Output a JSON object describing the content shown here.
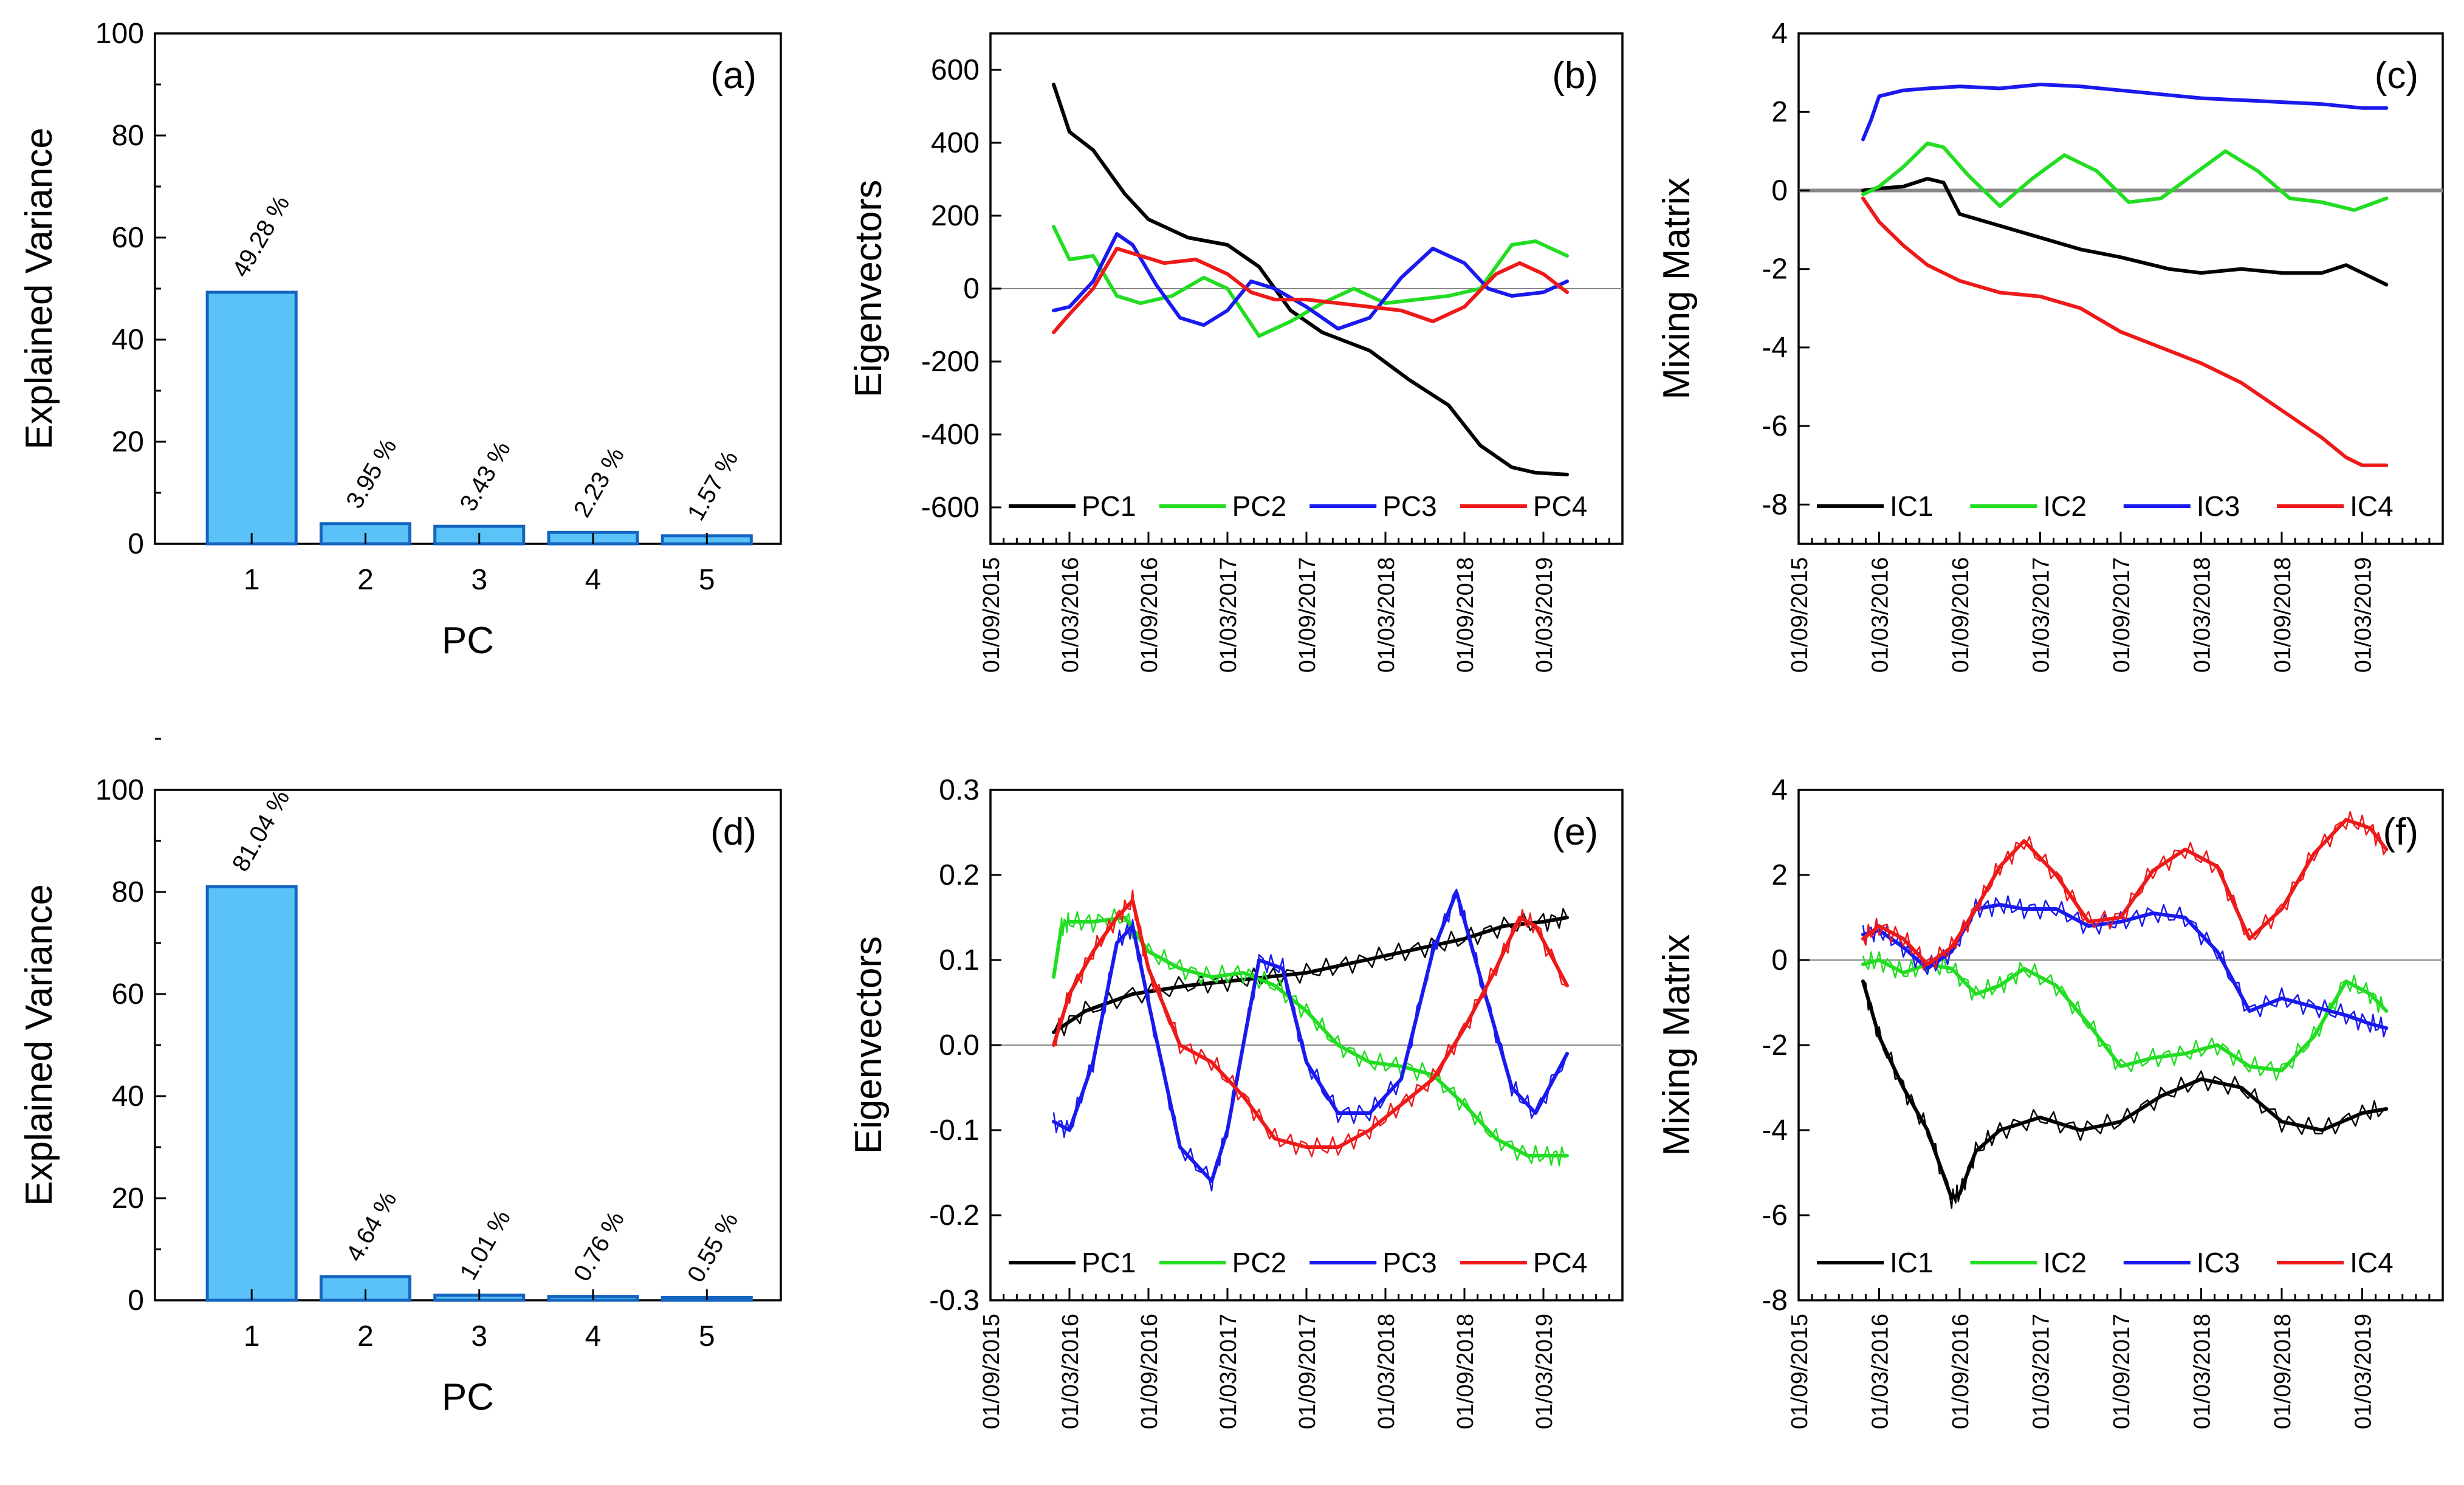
{
  "colors": {
    "bar_fill": "#5bc2f7",
    "bar_edge": "#1565c0",
    "PC1": "#000000",
    "PC2": "#22dd22",
    "PC3": "#1a1aee",
    "PC4": "#ee1a1a",
    "zero": "#888888"
  },
  "date_ticks": [
    "01/09/2015",
    "01/03/2016",
    "01/09/2016",
    "01/03/2017",
    "01/09/2017",
    "01/03/2018",
    "01/09/2018",
    "01/03/2019"
  ],
  "chart_data": [
    {
      "id": "a",
      "panel_label": "(a)",
      "type": "bar",
      "xlabel": "PC",
      "ylabel": "Explained Variance",
      "categories": [
        "1",
        "2",
        "3",
        "4",
        "5"
      ],
      "values": [
        49.28,
        3.95,
        3.43,
        2.23,
        1.57
      ],
      "data_labels": [
        "49.28 %",
        "3.95 %",
        "3.43 %",
        "2.23 %",
        "1.57 %"
      ],
      "ylim": [
        0,
        100
      ],
      "yticks": [
        "0",
        "20",
        "40",
        "60",
        "80",
        "100"
      ]
    },
    {
      "id": "b",
      "panel_label": "(b)",
      "type": "line",
      "ylabel": "Eigenvectors",
      "xlim": [
        0,
        8
      ],
      "ylim": [
        -700,
        700
      ],
      "yticks": [
        "-600",
        "-400",
        "-200",
        "0",
        "200",
        "400",
        "600"
      ],
      "ytick_values": [
        -600,
        -400,
        -200,
        0,
        200,
        400,
        600
      ],
      "legend": [
        "PC1",
        "PC2",
        "PC3",
        "PC4"
      ],
      "series": [
        {
          "name": "PC1",
          "x": [
            0.8,
            1.0,
            1.3,
            1.7,
            2.0,
            2.5,
            3.0,
            3.4,
            3.8,
            4.2,
            4.8,
            5.3,
            5.8,
            6.2,
            6.6,
            6.9,
            7.3
          ],
          "y": [
            560,
            430,
            380,
            260,
            190,
            140,
            120,
            60,
            -60,
            -120,
            -170,
            -250,
            -320,
            -430,
            -490,
            -505,
            -510
          ]
        },
        {
          "name": "PC2",
          "x": [
            0.8,
            1.0,
            1.3,
            1.6,
            1.9,
            2.3,
            2.7,
            3.0,
            3.4,
            3.8,
            4.2,
            4.6,
            5.0,
            5.4,
            5.8,
            6.2,
            6.6,
            6.9,
            7.3
          ],
          "y": [
            170,
            80,
            90,
            -20,
            -40,
            -20,
            30,
            0,
            -130,
            -90,
            -40,
            0,
            -40,
            -30,
            -20,
            0,
            120,
            130,
            90
          ]
        },
        {
          "name": "PC3",
          "x": [
            0.8,
            1.0,
            1.3,
            1.6,
            1.8,
            2.1,
            2.4,
            2.7,
            3.0,
            3.3,
            3.6,
            4.0,
            4.4,
            4.8,
            5.2,
            5.6,
            6.0,
            6.3,
            6.6,
            7.0,
            7.3
          ],
          "y": [
            -60,
            -50,
            20,
            150,
            120,
            10,
            -80,
            -100,
            -60,
            20,
            0,
            -50,
            -110,
            -80,
            30,
            110,
            70,
            0,
            -20,
            -10,
            20
          ]
        },
        {
          "name": "PC4",
          "x": [
            0.8,
            1.0,
            1.3,
            1.6,
            1.9,
            2.2,
            2.6,
            3.0,
            3.3,
            3.6,
            4.0,
            4.4,
            4.8,
            5.2,
            5.6,
            6.0,
            6.4,
            6.7,
            7.0,
            7.3
          ],
          "y": [
            -120,
            -70,
            0,
            110,
            90,
            70,
            80,
            40,
            -10,
            -30,
            -30,
            -40,
            -50,
            -60,
            -90,
            -50,
            40,
            70,
            40,
            -10
          ]
        }
      ]
    },
    {
      "id": "c",
      "panel_label": "(c)",
      "type": "line",
      "ylabel": "Mixing Matrix",
      "xlim": [
        0,
        8
      ],
      "ylim": [
        -9,
        4
      ],
      "yticks": [
        "-8",
        "-6",
        "-4",
        "-2",
        "0",
        "2",
        "4"
      ],
      "ytick_values": [
        -8,
        -6,
        -4,
        -2,
        0,
        2,
        4
      ],
      "legend": [
        "IC1",
        "IC2",
        "IC3",
        "IC4"
      ],
      "series": [
        {
          "name": "IC1",
          "x": [
            0.8,
            1.0,
            1.3,
            1.6,
            1.8,
            2.0,
            2.5,
            3.0,
            3.5,
            4.0,
            4.6,
            5.0,
            5.5,
            6.0,
            6.5,
            6.8,
            7.1,
            7.3
          ],
          "y": [
            0.0,
            0.05,
            0.1,
            0.3,
            0.2,
            -0.6,
            -0.9,
            -1.2,
            -1.5,
            -1.7,
            -2.0,
            -2.1,
            -2.0,
            -2.1,
            -2.1,
            -1.9,
            -2.2,
            -2.4
          ]
        },
        {
          "name": "IC2",
          "x": [
            0.8,
            1.0,
            1.3,
            1.6,
            1.8,
            2.1,
            2.5,
            2.9,
            3.3,
            3.7,
            4.1,
            4.5,
            4.9,
            5.3,
            5.7,
            6.1,
            6.5,
            6.9,
            7.3
          ],
          "y": [
            -0.1,
            0.1,
            0.6,
            1.2,
            1.1,
            0.4,
            -0.4,
            0.3,
            0.9,
            0.5,
            -0.3,
            -0.2,
            0.4,
            1.0,
            0.5,
            -0.2,
            -0.3,
            -0.5,
            -0.2
          ]
        },
        {
          "name": "IC3",
          "x": [
            0.8,
            0.9,
            1.0,
            1.3,
            1.6,
            2.0,
            2.5,
            3.0,
            3.5,
            4.0,
            4.5,
            5.0,
            5.5,
            6.0,
            6.5,
            7.0,
            7.3
          ],
          "y": [
            1.3,
            1.8,
            2.4,
            2.55,
            2.6,
            2.65,
            2.6,
            2.7,
            2.65,
            2.55,
            2.45,
            2.35,
            2.3,
            2.25,
            2.2,
            2.1,
            2.1
          ]
        },
        {
          "name": "IC4",
          "x": [
            0.8,
            1.0,
            1.3,
            1.6,
            2.0,
            2.5,
            3.0,
            3.5,
            4.0,
            4.5,
            5.0,
            5.5,
            6.0,
            6.5,
            6.8,
            7.0,
            7.3
          ],
          "y": [
            -0.2,
            -0.8,
            -1.4,
            -1.9,
            -2.3,
            -2.6,
            -2.7,
            -3.0,
            -3.6,
            -4.0,
            -4.4,
            -4.9,
            -5.6,
            -6.3,
            -6.8,
            -7.0,
            -7.0
          ]
        }
      ]
    },
    {
      "id": "d",
      "panel_label": "(d)",
      "type": "bar",
      "xlabel": "PC",
      "ylabel": "Explained Variance",
      "categories": [
        "1",
        "2",
        "3",
        "4",
        "5"
      ],
      "values": [
        81.04,
        4.64,
        1.01,
        0.76,
        0.55
      ],
      "data_labels": [
        "81.04 %",
        "4.64 %",
        "1.01 %",
        "0.76 %",
        "0.55 %"
      ],
      "ylim": [
        0,
        100
      ],
      "yticks": [
        "0",
        "20",
        "40",
        "60",
        "80",
        "100"
      ]
    },
    {
      "id": "e",
      "panel_label": "(e)",
      "type": "line",
      "ylabel": "Eigenvectors",
      "xlim": [
        0,
        8
      ],
      "ylim": [
        -0.3,
        0.3
      ],
      "yticks": [
        "-0.3",
        "-0.2",
        "-0.1",
        "0.0",
        "0.1",
        "0.2",
        "0.3"
      ],
      "ytick_values": [
        -0.3,
        -0.2,
        -0.1,
        0,
        0.1,
        0.2,
        0.3
      ],
      "legend": [
        "PC1",
        "PC2",
        "PC3",
        "PC4"
      ],
      "series": [
        {
          "name": "PC1",
          "x": [
            0.8,
            1.2,
            1.8,
            2.5,
            3.0,
            3.5,
            4.0,
            4.5,
            5.0,
            5.5,
            6.0,
            6.5,
            7.0,
            7.3
          ],
          "y": [
            0.015,
            0.04,
            0.06,
            0.07,
            0.075,
            0.08,
            0.085,
            0.095,
            0.105,
            0.115,
            0.125,
            0.14,
            0.145,
            0.15
          ]
        },
        {
          "name": "PC2",
          "x": [
            0.8,
            0.9,
            1.0,
            1.3,
            1.7,
            2.0,
            2.4,
            2.8,
            3.2,
            3.6,
            4.0,
            4.4,
            4.8,
            5.2,
            5.6,
            6.0,
            6.4,
            6.8,
            7.1,
            7.3
          ],
          "y": [
            0.08,
            0.14,
            0.145,
            0.145,
            0.15,
            0.11,
            0.09,
            0.08,
            0.085,
            0.07,
            0.04,
            0.0,
            -0.02,
            -0.025,
            -0.035,
            -0.07,
            -0.11,
            -0.13,
            -0.13,
            -0.13
          ]
        },
        {
          "name": "PC3",
          "x": [
            0.8,
            1.0,
            1.3,
            1.6,
            1.8,
            2.0,
            2.4,
            2.8,
            3.0,
            3.4,
            3.7,
            4.0,
            4.4,
            4.8,
            5.2,
            5.6,
            5.9,
            6.2,
            6.6,
            6.9,
            7.3
          ],
          "y": [
            -0.09,
            -0.1,
            -0.02,
            0.12,
            0.14,
            0.05,
            -0.12,
            -0.16,
            -0.1,
            0.1,
            0.09,
            -0.02,
            -0.08,
            -0.08,
            -0.04,
            0.11,
            0.18,
            0.08,
            -0.05,
            -0.08,
            -0.01
          ]
        },
        {
          "name": "PC4",
          "x": [
            0.8,
            1.0,
            1.3,
            1.6,
            1.8,
            2.0,
            2.4,
            2.8,
            3.2,
            3.6,
            4.0,
            4.4,
            4.8,
            5.2,
            5.6,
            6.0,
            6.4,
            6.7,
            6.9,
            7.3
          ],
          "y": [
            0.0,
            0.06,
            0.11,
            0.15,
            0.17,
            0.09,
            0.0,
            -0.02,
            -0.06,
            -0.11,
            -0.12,
            -0.12,
            -0.1,
            -0.07,
            -0.04,
            0.02,
            0.09,
            0.15,
            0.14,
            0.07
          ]
        }
      ]
    },
    {
      "id": "f",
      "panel_label": "(f)",
      "type": "line",
      "ylabel": "Mixing Matrix",
      "xlim": [
        0,
        8
      ],
      "ylim": [
        -8,
        4
      ],
      "yticks": [
        "-8",
        "-6",
        "-4",
        "-2",
        "0",
        "2",
        "4"
      ],
      "ytick_values": [
        -8,
        -6,
        -4,
        -2,
        0,
        2,
        4
      ],
      "legend": [
        "IC1",
        "IC2",
        "IC3",
        "IC4"
      ],
      "series": [
        {
          "name": "IC1",
          "x": [
            0.8,
            1.0,
            1.3,
            1.6,
            1.9,
            2.0,
            2.2,
            2.5,
            3.0,
            3.5,
            4.0,
            4.5,
            5.0,
            5.5,
            6.0,
            6.5,
            7.0,
            7.3
          ],
          "y": [
            -0.5,
            -1.8,
            -3.0,
            -4.0,
            -5.6,
            -5.5,
            -4.5,
            -4.0,
            -3.7,
            -4.0,
            -3.8,
            -3.2,
            -2.8,
            -3.0,
            -3.8,
            -4.0,
            -3.6,
            -3.5
          ]
        },
        {
          "name": "IC2",
          "x": [
            0.8,
            1.0,
            1.3,
            1.6,
            1.9,
            2.2,
            2.5,
            2.8,
            3.2,
            3.6,
            4.0,
            4.4,
            4.8,
            5.2,
            5.6,
            6.0,
            6.4,
            6.8,
            7.1,
            7.3
          ],
          "y": [
            -0.1,
            0.0,
            -0.3,
            -0.1,
            -0.2,
            -0.8,
            -0.6,
            -0.2,
            -0.6,
            -1.5,
            -2.5,
            -2.3,
            -2.2,
            -2.0,
            -2.5,
            -2.6,
            -1.8,
            -0.5,
            -0.8,
            -1.2
          ]
        },
        {
          "name": "IC3",
          "x": [
            0.8,
            1.0,
            1.3,
            1.6,
            1.9,
            2.2,
            2.5,
            2.8,
            3.2,
            3.6,
            4.0,
            4.4,
            4.8,
            5.2,
            5.6,
            6.0,
            6.4,
            6.8,
            7.1,
            7.3
          ],
          "y": [
            0.6,
            0.7,
            0.3,
            -0.2,
            0.2,
            1.2,
            1.3,
            1.2,
            1.2,
            0.8,
            0.9,
            1.1,
            1.0,
            0.2,
            -1.2,
            -0.9,
            -1.1,
            -1.3,
            -1.5,
            -1.6
          ]
        },
        {
          "name": "IC4",
          "x": [
            0.8,
            1.0,
            1.3,
            1.6,
            1.9,
            2.2,
            2.5,
            2.8,
            3.2,
            3.6,
            4.0,
            4.4,
            4.8,
            5.2,
            5.6,
            6.0,
            6.4,
            6.8,
            7.1,
            7.3
          ],
          "y": [
            0.5,
            0.8,
            0.5,
            -0.1,
            0.3,
            1.2,
            2.2,
            2.8,
            2.0,
            0.9,
            1.0,
            2.1,
            2.6,
            2.2,
            0.5,
            1.2,
            2.5,
            3.3,
            3.1,
            2.6
          ]
        }
      ]
    }
  ]
}
